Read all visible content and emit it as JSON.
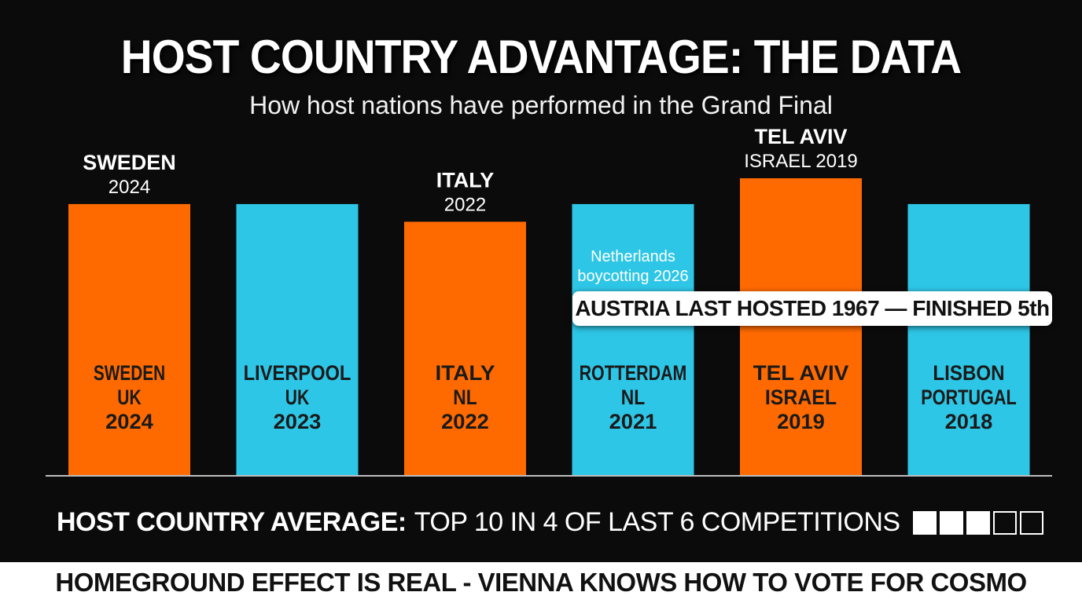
{
  "title": "HOST COUNTRY ADVANTAGE: THE DATA",
  "subtitle": "How host nations have performed in the Grand Final",
  "chart_data": {
    "type": "bar",
    "bars": [
      {
        "label_lines": [
          "SWEDEN",
          "UK",
          "2024"
        ],
        "top_label": [
          "SWEDEN",
          "2024"
        ],
        "value": 100,
        "color": "#ff6a00"
      },
      {
        "label_lines": [
          "LIVERPOOL",
          "UK",
          "2023"
        ],
        "top_label": [],
        "value": 100,
        "color": "#2ec6e6"
      },
      {
        "label_lines": [
          "ITALY",
          "NL",
          "2022"
        ],
        "top_label": [
          "ITALY",
          "2022"
        ],
        "value": 93.5,
        "color": "#ff6a00"
      },
      {
        "label_lines": [
          "ROTTERDAM",
          "NL",
          "2021"
        ],
        "top_label": [],
        "value": 100,
        "color": "#2ec6e6",
        "inner_note": [
          "Netherlands",
          "boycotting 2026"
        ]
      },
      {
        "label_lines": [
          "TEL AVIV",
          "ISRAEL",
          "2019"
        ],
        "top_label": [
          "TEL AVIV",
          "ISRAEL 2019"
        ],
        "value": 109.5,
        "color": "#ff6a00"
      },
      {
        "label_lines": [
          "LISBON",
          "PORTUGAL",
          "2018"
        ],
        "top_label": [],
        "value": 100,
        "color": "#2ec6e6"
      }
    ],
    "ylim": [
      0,
      115
    ],
    "grid": false,
    "legend": "none"
  },
  "note": "AUSTRIA LAST HOSTED 1967 — FINISHED 5th",
  "average": {
    "lead": "HOST COUNTRY AVERAGE:",
    "rest": "TOP 10 IN 4 OF LAST 6 COMPETITIONS",
    "filled": 3,
    "total": 5
  },
  "footer": "HOMEGROUND EFFECT IS REAL - VIENNA KNOWS HOW TO VOTE FOR COSMO"
}
